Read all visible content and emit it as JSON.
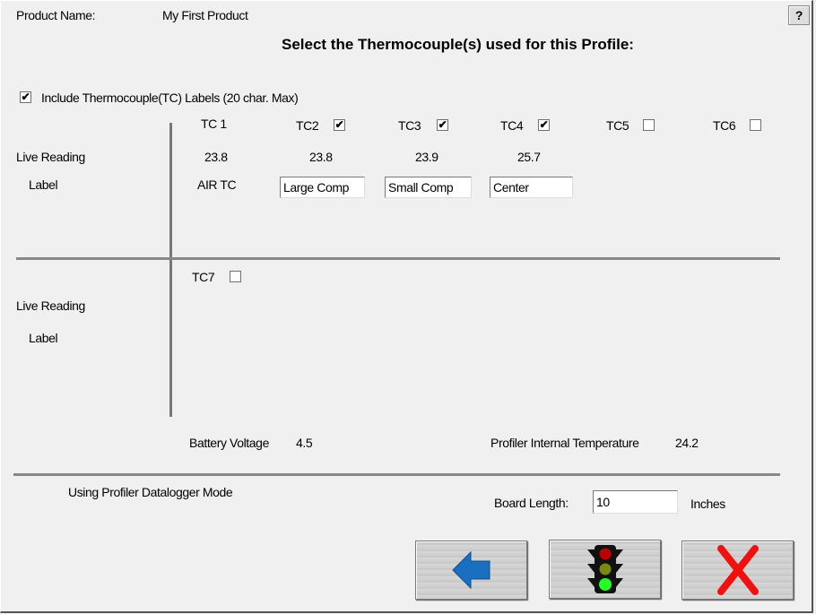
{
  "header": {
    "product_name_label": "Product Name:",
    "product_name": "My First Product",
    "help": "?",
    "title": "Select the Thermocouple(s) used for this Profile:"
  },
  "include_labels": {
    "checked": true,
    "label": "Include Thermocouple(TC)  Labels (20 char. Max)"
  },
  "row_labels": {
    "live_reading": "Live Reading",
    "label": "Label"
  },
  "tcs": [
    {
      "name": "TC 1",
      "reading": "23.8",
      "label": "AIR TC"
    },
    {
      "name": "TC2",
      "checked": true,
      "reading": "23.8",
      "label": "Large Comp"
    },
    {
      "name": "TC3",
      "checked": true,
      "reading": "23.9",
      "label": "Small Comp"
    },
    {
      "name": "TC4",
      "checked": true,
      "reading": "25.7",
      "label": "Center"
    },
    {
      "name": "TC5",
      "checked": false
    },
    {
      "name": "TC6",
      "checked": false
    },
    {
      "name": "TC7",
      "checked": false
    }
  ],
  "status": {
    "battery_label": "Battery Voltage",
    "battery_value": "4.5",
    "internal_temp_label": "Profiler Internal Temperature",
    "internal_temp_value": "24.2",
    "mode": "Using Profiler Datalogger Mode"
  },
  "board": {
    "label": "Board Length:",
    "value": "10",
    "unit": "Inches"
  },
  "buttons": {
    "back": "back-arrow-icon",
    "start": "traffic-light-icon",
    "cancel": "red-x-icon"
  },
  "check_mark": "✔"
}
